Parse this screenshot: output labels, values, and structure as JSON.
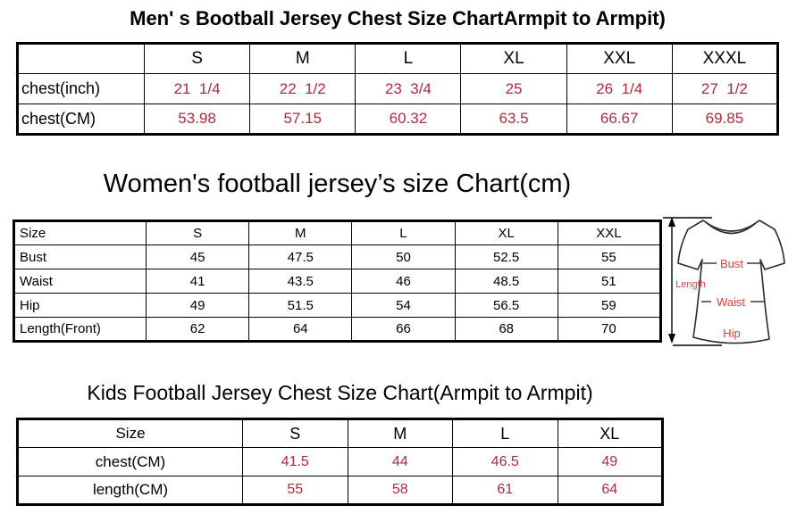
{
  "colors": {
    "table_value_red": "#b02a3c",
    "diagram_label_red": "#e53b3b",
    "border_black": "#000000",
    "background": "#ffffff"
  },
  "chart_data": [
    {
      "type": "table",
      "title": "Men' s Bootball Jersey Chest Size ChartArmpit to Armpit)",
      "columns": [
        "",
        "S",
        "M",
        "L",
        "XL",
        "XXL",
        "XXXL"
      ],
      "rows": [
        [
          "chest(inch)",
          "21  1/4",
          "22  1/2",
          "23  3/4",
          "25",
          "26  1/4",
          "27  1/2"
        ],
        [
          "chest(CM)",
          "53.98",
          "57.15",
          "60.32",
          "63.5",
          "66.67",
          "69.85"
        ]
      ]
    },
    {
      "type": "table",
      "title": "Women's football jersey’s size Chart(cm)",
      "columns": [
        "Size",
        "S",
        "M",
        "L",
        "XL",
        "XXL"
      ],
      "rows": [
        [
          "Bust",
          "45",
          "47.5",
          "50",
          "52.5",
          "55"
        ],
        [
          "Waist",
          "41",
          "43.5",
          "46",
          "48.5",
          "51"
        ],
        [
          "Hip",
          "49",
          "51.5",
          "54",
          "56.5",
          "59"
        ],
        [
          "Length(Front)",
          "62",
          "64",
          "66",
          "68",
          "70"
        ]
      ]
    },
    {
      "type": "table",
      "title": "Kids Football Jersey Chest Size Chart(Armpit to Armpit)",
      "columns": [
        "Size",
        "S",
        "M",
        "L",
        "XL"
      ],
      "rows": [
        [
          "chest(CM)",
          "41.5",
          "44",
          "46.5",
          "49"
        ],
        [
          "length(CM)",
          "55",
          "58",
          "61",
          "64"
        ]
      ]
    }
  ],
  "diagram": {
    "labels": {
      "length": "Length",
      "bust": "Bust",
      "waist": "Waist",
      "hip": "Hip"
    }
  }
}
